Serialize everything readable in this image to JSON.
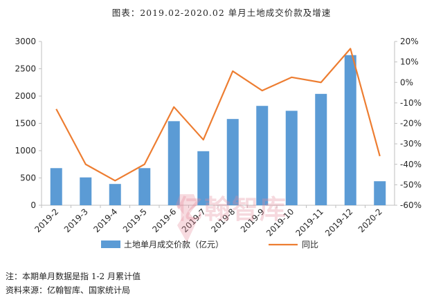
{
  "title": "图表：2019.02-2020.02 单月土地成交价款及增速",
  "notes": {
    "line1": "注：本期单月数据是指 1-2 月累计值",
    "line2": "资料来源：亿翰智库、国家统计局"
  },
  "watermark": "亿翰智库",
  "colors": {
    "bar": "#5b9bd5",
    "line": "#ed7d31",
    "axis": "#bfbfbf",
    "text": "#262626"
  },
  "chart_data": {
    "type": "bar",
    "categories": [
      "2019-2",
      "2019-3",
      "2019-4",
      "2019-5",
      "2019-6",
      "2019-7",
      "2019-8",
      "2019-9",
      "2019-10",
      "2019-11",
      "2019-12",
      "2020-2"
    ],
    "series": [
      {
        "name": "土地单月成交价款（亿元）",
        "type": "bar",
        "axis": "left",
        "values": [
          680,
          510,
          390,
          680,
          1540,
          990,
          1580,
          1820,
          1730,
          2040,
          2750,
          440
        ]
      },
      {
        "name": "同比",
        "type": "line",
        "axis": "right",
        "values": [
          -13,
          -40,
          -48,
          -40,
          -12,
          -28,
          5.5,
          -4,
          2.5,
          0,
          16.5,
          -36
        ]
      }
    ],
    "ylim_left": [
      0,
      3000
    ],
    "yticks_left": [
      "0",
      "500",
      "1000",
      "1500",
      "2000",
      "2500",
      "3000"
    ],
    "ylim_right": [
      -60,
      20
    ],
    "yticks_right": [
      "-60%",
      "-50%",
      "-40%",
      "-30%",
      "-20%",
      "-10%",
      "0%",
      "10%",
      "20%"
    ],
    "legend_position": "bottom",
    "grid": false
  }
}
